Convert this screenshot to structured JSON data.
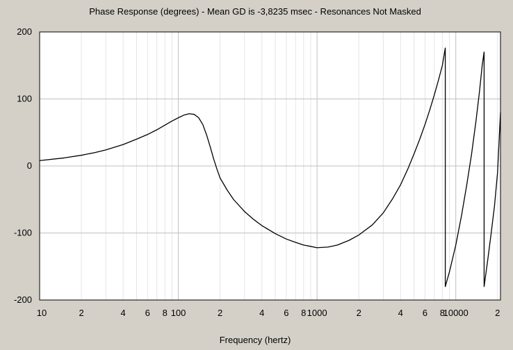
{
  "chart_data": {
    "type": "line",
    "title": "Phase Response (degrees) - Mean GD is -3,8235 msec - Resonances Not Masked",
    "xlabel": "Frequency (hertz)",
    "ylabel": "",
    "x_scale": "log",
    "xlim": [
      10,
      21000
    ],
    "ylim": [
      -200,
      200
    ],
    "grid": true,
    "y_ticks": [
      200,
      100,
      0,
      -100,
      -200
    ],
    "y_tick_labels": [
      "200",
      "100",
      "0",
      "-100",
      "-200"
    ],
    "x_ticks": [
      10,
      20,
      40,
      60,
      80,
      100,
      200,
      400,
      600,
      800,
      1000,
      2000,
      4000,
      6000,
      8000,
      10000,
      20000
    ],
    "x_tick_labels": [
      "10",
      "2",
      "4",
      "6",
      "8",
      "100",
      "2",
      "4",
      "6",
      "8",
      "1000",
      "2",
      "4",
      "6",
      "8",
      "10000",
      "2"
    ],
    "series": [
      {
        "color": "#000000",
        "points": [
          [
            10,
            8
          ],
          [
            15,
            12
          ],
          [
            20,
            16
          ],
          [
            25,
            20
          ],
          [
            30,
            24
          ],
          [
            40,
            32
          ],
          [
            50,
            40
          ],
          [
            60,
            47
          ],
          [
            70,
            54
          ],
          [
            80,
            61
          ],
          [
            90,
            67
          ],
          [
            100,
            72
          ],
          [
            110,
            76
          ],
          [
            120,
            78
          ],
          [
            130,
            77
          ],
          [
            140,
            72
          ],
          [
            150,
            62
          ],
          [
            160,
            46
          ],
          [
            170,
            28
          ],
          [
            180,
            10
          ],
          [
            190,
            -5
          ],
          [
            200,
            -18
          ],
          [
            225,
            -36
          ],
          [
            250,
            -50
          ],
          [
            300,
            -68
          ],
          [
            350,
            -80
          ],
          [
            400,
            -89
          ],
          [
            500,
            -101
          ],
          [
            600,
            -109
          ],
          [
            700,
            -114
          ],
          [
            800,
            -118
          ],
          [
            900,
            -120
          ],
          [
            1000,
            -122
          ],
          [
            1200,
            -121
          ],
          [
            1400,
            -118
          ],
          [
            1700,
            -111
          ],
          [
            2000,
            -103
          ],
          [
            2500,
            -88
          ],
          [
            3000,
            -70
          ],
          [
            3500,
            -49
          ],
          [
            4000,
            -28
          ],
          [
            4500,
            -5
          ],
          [
            5000,
            18
          ],
          [
            5500,
            40
          ],
          [
            6000,
            62
          ],
          [
            6500,
            84
          ],
          [
            7000,
            106
          ],
          [
            7500,
            128
          ],
          [
            8000,
            150
          ],
          [
            8400,
            176
          ],
          [
            8400,
            -180
          ],
          [
            9000,
            -158
          ],
          [
            10000,
            -118
          ],
          [
            11000,
            -74
          ],
          [
            12000,
            -28
          ],
          [
            13000,
            18
          ],
          [
            14000,
            68
          ],
          [
            14800,
            110
          ],
          [
            15500,
            150
          ],
          [
            16000,
            170
          ],
          [
            16000,
            -180
          ],
          [
            17000,
            -140
          ],
          [
            18000,
            -100
          ],
          [
            19000,
            -60
          ],
          [
            20000,
            -10
          ],
          [
            21000,
            80
          ]
        ]
      }
    ]
  }
}
